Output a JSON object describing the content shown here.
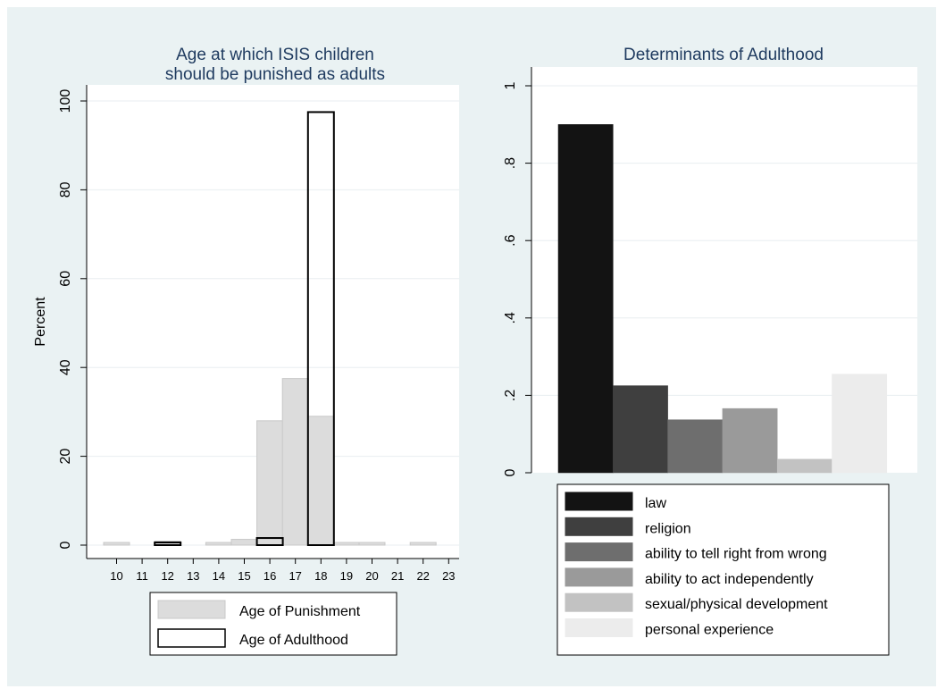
{
  "chart_data": [
    {
      "type": "bar",
      "title_line1": "Age at which ISIS children",
      "title_line2": "should be punished as adults",
      "xlabel": "",
      "ylabel": "Percent",
      "ylim": [
        0,
        100
      ],
      "yticks": [
        "0",
        "20",
        "40",
        "60",
        "80",
        "100"
      ],
      "ytick_values": [
        0,
        20,
        40,
        60,
        80,
        100
      ],
      "categories": [
        "10",
        "11",
        "12",
        "13",
        "14",
        "15",
        "16",
        "17",
        "18",
        "19",
        "20",
        "21",
        "22",
        "23"
      ],
      "grid": true,
      "legend_position": "bottom",
      "series": [
        {
          "name": "Age of Punishment",
          "color": "#dcdcdc",
          "stroke": "#c8c8c8",
          "values": [
            0.6,
            0,
            0.9,
            0,
            0.6,
            1.3,
            28,
            37.5,
            29,
            0.6,
            0.6,
            0,
            0.6,
            0
          ]
        },
        {
          "name": "Age of Adulthood",
          "color": "#ffffff",
          "stroke": "#000000",
          "values": [
            0,
            0,
            0.6,
            0,
            0,
            0,
            1.6,
            0,
            97.5,
            0,
            0,
            0,
            0,
            0
          ]
        }
      ]
    },
    {
      "type": "bar",
      "title": "Determinants of Adulthood",
      "xlabel": "",
      "ylabel": "",
      "ylim": [
        0,
        1
      ],
      "yticks": [
        "0",
        ".2",
        ".4",
        ".6",
        ".8",
        "1"
      ],
      "ytick_values": [
        0,
        0.2,
        0.4,
        0.6,
        0.8,
        1
      ],
      "grid": true,
      "legend_position": "bottom",
      "series": [
        {
          "name": "law",
          "value": 0.9,
          "color": "#131313"
        },
        {
          "name": "religion",
          "value": 0.225,
          "color": "#3f3f3f"
        },
        {
          "name": "ability to tell right from wrong",
          "value": 0.137,
          "color": "#6e6e6e"
        },
        {
          "name": "ability to act independently",
          "value": 0.166,
          "color": "#9a9a9a"
        },
        {
          "name": "sexual/physical development",
          "value": 0.035,
          "color": "#c2c2c2"
        },
        {
          "name": "personal experience",
          "value": 0.255,
          "color": "#ececec"
        }
      ]
    }
  ],
  "colors": {
    "outer_background": "#eaf2f3",
    "plot_background": "#ffffff",
    "grid": "#e8eef0",
    "title": "#1e3a5f"
  }
}
